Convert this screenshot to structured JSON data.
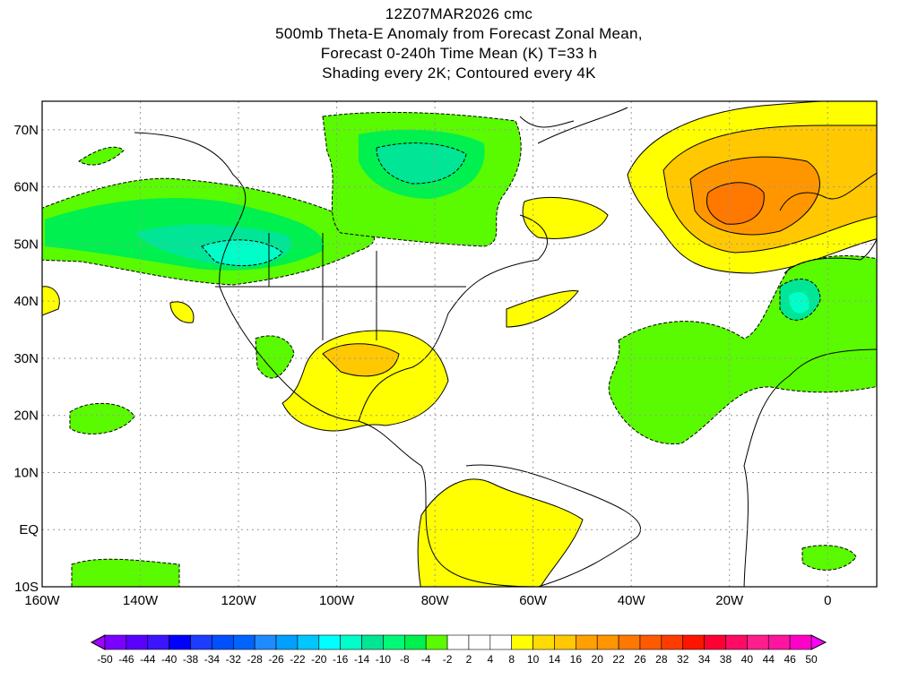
{
  "title": {
    "line1": "12Z07MAR2026 cmc",
    "line2": "500mb Theta-E Anomaly from Forecast Zonal Mean,",
    "line3": "Forecast 0-240h Time Mean (K) T=33 h",
    "line4": "Shading every 2K; Contoured every 4K"
  },
  "map": {
    "lon_range": [
      -160,
      10
    ],
    "lat_range": [
      -10,
      75
    ],
    "lon_ticks": [
      {
        "v": -160,
        "label": "160W"
      },
      {
        "v": -140,
        "label": "140W"
      },
      {
        "v": -120,
        "label": "120W"
      },
      {
        "v": -100,
        "label": "100W"
      },
      {
        "v": -80,
        "label": "80W"
      },
      {
        "v": -60,
        "label": "60W"
      },
      {
        "v": -40,
        "label": "40W"
      },
      {
        "v": -20,
        "label": "20W"
      },
      {
        "v": 0,
        "label": "0"
      }
    ],
    "lat_ticks": [
      {
        "v": 70,
        "label": "70N"
      },
      {
        "v": 60,
        "label": "60N"
      },
      {
        "v": 50,
        "label": "50N"
      },
      {
        "v": 40,
        "label": "40N"
      },
      {
        "v": 30,
        "label": "30N"
      },
      {
        "v": 20,
        "label": "20N"
      },
      {
        "v": 10,
        "label": "10N"
      },
      {
        "v": 0,
        "label": "EQ"
      },
      {
        "v": -10,
        "label": "10S"
      }
    ]
  },
  "colorbar": {
    "labels": [
      "-50",
      "-46",
      "-44",
      "-40",
      "-38",
      "-34",
      "-32",
      "-28",
      "-26",
      "-22",
      "-20",
      "-16",
      "-14",
      "-10",
      "-8",
      "-4",
      "-2",
      "2",
      "4",
      "8",
      "10",
      "14",
      "16",
      "20",
      "22",
      "26",
      "28",
      "32",
      "34",
      "38",
      "40",
      "44",
      "46",
      "50"
    ],
    "colors": [
      "#7a00ff",
      "#5a00ff",
      "#3c14ff",
      "#0000ff",
      "#1e3cff",
      "#0050ff",
      "#0064ff",
      "#1e8cff",
      "#00a0ff",
      "#00c8ff",
      "#00ffff",
      "#00ffc8",
      "#00e696",
      "#00fa78",
      "#00f050",
      "#5afa00",
      "#ffffff",
      "#ffffff",
      "#ffffff",
      "#ffff00",
      "#ffdc00",
      "#ffc800",
      "#ffa000",
      "#ff9600",
      "#ff7800",
      "#ff5a00",
      "#ff3c00",
      "#ff1400",
      "#ff0032",
      "#ff0a64",
      "#ff1e8c",
      "#ff14a0",
      "#ff00c8"
    ],
    "min_color": "#a000ff",
    "max_color": "#ff00ff"
  }
}
